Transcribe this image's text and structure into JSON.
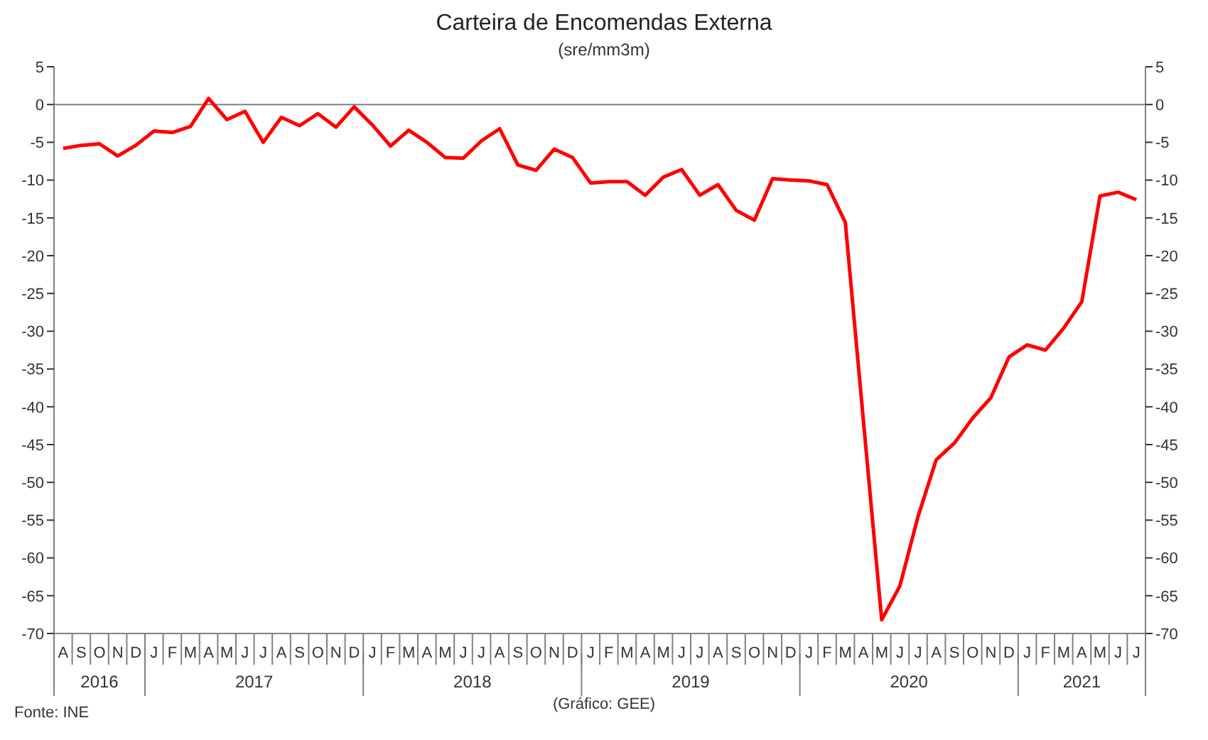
{
  "chart_data": {
    "type": "line",
    "title": "Carteira de Encomendas Externa",
    "subtitle": "(sre/mm3m)",
    "categories": [
      "A",
      "S",
      "O",
      "N",
      "D",
      "J",
      "F",
      "M",
      "A",
      "M",
      "J",
      "J",
      "A",
      "S",
      "O",
      "N",
      "D",
      "J",
      "F",
      "M",
      "A",
      "M",
      "J",
      "J",
      "A",
      "S",
      "O",
      "N",
      "D",
      "J",
      "F",
      "M",
      "A",
      "M",
      "J",
      "J",
      "A",
      "S",
      "O",
      "N",
      "D",
      "J",
      "F",
      "M",
      "A",
      "M",
      "J",
      "J",
      "A",
      "S",
      "O",
      "N",
      "D",
      "J",
      "F",
      "M",
      "A",
      "M",
      "J",
      "J"
    ],
    "series": [
      {
        "color": "#ff0000",
        "values": [
          -5.8,
          -5.4,
          -5.2,
          -6.8,
          -5.4,
          -3.5,
          -3.7,
          -2.9,
          0.8,
          -2.0,
          -0.9,
          -5.0,
          -1.7,
          -2.8,
          -1.2,
          -3.0,
          -0.3,
          -2.7,
          -5.5,
          -3.4,
          -5.0,
          -7.0,
          -7.1,
          -4.8,
          -3.2,
          -8.0,
          -8.7,
          -5.9,
          -7.0,
          -10.4,
          -10.2,
          -10.2,
          -12.0,
          -9.6,
          -8.6,
          -12.0,
          -10.6,
          -14.0,
          -15.3,
          -9.8,
          -10.0,
          -10.1,
          -10.6,
          -15.6,
          -42.0,
          -68.2,
          -63.7,
          -54.5,
          -47.0,
          -44.8,
          -41.5,
          -38.8,
          -33.4,
          -31.8,
          -32.5,
          -29.6,
          -26.1,
          -12.1,
          -11.6,
          -12.6
        ]
      }
    ],
    "ylim": [
      -70,
      5
    ],
    "yticks": [
      -70,
      -65,
      -60,
      -55,
      -50,
      -45,
      -40,
      -35,
      -30,
      -25,
      -20,
      -15,
      -10,
      -5,
      0,
      5
    ],
    "y2lim": [
      -70,
      5
    ],
    "y2ticks": [
      -70,
      -65,
      -60,
      -55,
      -50,
      -45,
      -40,
      -35,
      -30,
      -25,
      -20,
      -15,
      -10,
      -5,
      0,
      5
    ],
    "ref_lines": [
      {
        "axis": "y",
        "value": 0,
        "color": "#808080"
      }
    ],
    "annotations": [
      "Fonte: INE",
      "(Gráfico: GEE)",
      "2016",
      "2017",
      "2018",
      "2019",
      "2020",
      "2021"
    ],
    "grid": false,
    "legend": false,
    "marker": "none",
    "line_style": "solid"
  }
}
